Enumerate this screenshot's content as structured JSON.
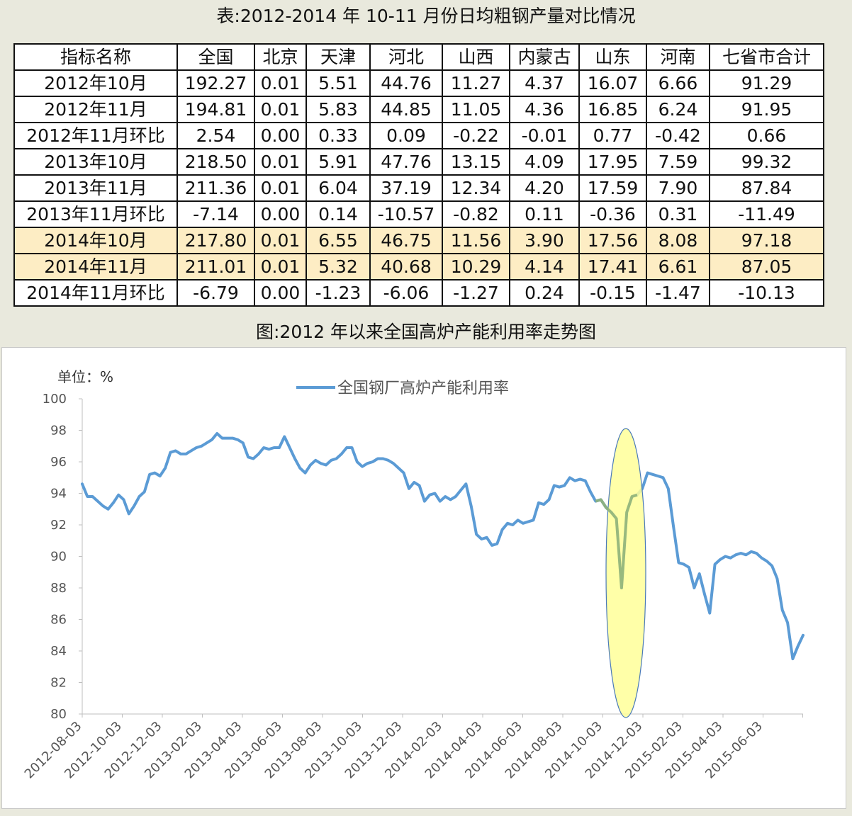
{
  "table_title": "表:2012-2014 年 10-11 月份日均粗钢产量对比情况",
  "chart_title": "图:2012 年以来全国高炉产能利用率走势图",
  "table": {
    "headers": [
      "指标名称",
      "全国",
      "北京",
      "天津",
      "河北",
      "山西",
      "内蒙古",
      "山东",
      "河南",
      "七省市合计"
    ],
    "rows": [
      [
        "2012年10月",
        "192.27",
        "0.01",
        "5.51",
        "44.76",
        "11.27",
        "4.37",
        "16.07",
        "6.66",
        "91.29"
      ],
      [
        "2012年11月",
        "194.81",
        "0.01",
        "5.83",
        "44.85",
        "11.05",
        "4.36",
        "16.85",
        "6.24",
        "91.95"
      ],
      [
        "2012年11月环比",
        "2.54",
        "0.00",
        "0.33",
        "0.09",
        "-0.22",
        "-0.01",
        "0.77",
        "-0.42",
        "0.66"
      ],
      [
        "2013年10月",
        "218.50",
        "0.01",
        "5.91",
        "47.76",
        "13.15",
        "4.09",
        "17.95",
        "7.59",
        "99.32"
      ],
      [
        "2013年11月",
        "211.36",
        "0.01",
        "6.04",
        "37.19",
        "12.34",
        "4.20",
        "17.59",
        "7.90",
        "87.84"
      ],
      [
        "2013年11月环比",
        "-7.14",
        "0.00",
        "0.14",
        "-10.57",
        "-0.82",
        "0.11",
        "-0.36",
        "0.31",
        "-11.49"
      ],
      [
        "2014年10月",
        "217.80",
        "0.01",
        "6.55",
        "46.75",
        "11.56",
        "3.90",
        "17.56",
        "8.08",
        "97.18"
      ],
      [
        "2014年11月",
        "211.01",
        "0.01",
        "5.32",
        "40.68",
        "10.29",
        "4.14",
        "17.41",
        "6.61",
        "87.05"
      ],
      [
        "2014年11月环比",
        "-6.79",
        "0.00",
        "-1.23",
        "-6.06",
        "-1.27",
        "0.24",
        "-0.15",
        "-1.47",
        "-10.13"
      ]
    ],
    "highlight_rows": [
      6,
      7
    ],
    "highlight_color": "#fdedc4"
  },
  "chart_data": {
    "type": "line",
    "unit_label": "单位：%",
    "ylim": [
      80,
      100
    ],
    "yticks": [
      80,
      82,
      84,
      86,
      88,
      90,
      92,
      94,
      96,
      98,
      100
    ],
    "x_tick_labels": [
      "2012-08-03",
      "2012-10-03",
      "2012-12-03",
      "2013-02-03",
      "2013-04-03",
      "2013-06-03",
      "2013-08-03",
      "2013-10-03",
      "2013-12-03",
      "2014-02-03",
      "2014-04-03",
      "2014-06-03",
      "2014-08-03",
      "2014-10-03",
      "2014-12-03",
      "2015-02-03",
      "2015-04-03",
      "2015-06-03"
    ],
    "grid": false,
    "legend": "top",
    "series": [
      {
        "name": "全国钢厂高炉产能利用率",
        "color": "#5b9bd5",
        "values": [
          94.6,
          93.8,
          93.8,
          93.5,
          93.2,
          93.0,
          93.4,
          93.9,
          93.6,
          92.7,
          93.2,
          93.8,
          94.1,
          95.2,
          95.3,
          95.1,
          95.6,
          96.6,
          96.7,
          96.5,
          96.5,
          96.7,
          96.9,
          97.0,
          97.2,
          97.4,
          97.8,
          97.5,
          97.5,
          97.5,
          97.4,
          97.2,
          96.3,
          96.2,
          96.5,
          96.9,
          96.8,
          96.9,
          96.9,
          97.6,
          96.9,
          96.2,
          95.6,
          95.3,
          95.8,
          96.1,
          95.9,
          95.8,
          96.1,
          96.2,
          96.5,
          96.9,
          96.9,
          96.0,
          95.7,
          95.9,
          96.0,
          96.2,
          96.2,
          96.1,
          95.9,
          95.6,
          95.3,
          94.3,
          94.7,
          94.5,
          93.5,
          93.9,
          94.0,
          93.5,
          93.8,
          93.6,
          93.8,
          94.2,
          94.6,
          93.2,
          91.4,
          91.1,
          91.2,
          90.7,
          90.8,
          91.7,
          92.1,
          92.0,
          92.3,
          92.1,
          92.2,
          92.3,
          93.4,
          93.3,
          93.6,
          94.5,
          94.4,
          94.5,
          95.0,
          94.8,
          94.9,
          94.8,
          94.1,
          93.5,
          93.6,
          93.1,
          92.8,
          92.4,
          88.0,
          92.8,
          93.8,
          93.9,
          94.3,
          95.3,
          95.2,
          95.1,
          95.0,
          94.3,
          91.9,
          89.6,
          89.5,
          89.3,
          88.0,
          88.9,
          87.6,
          86.4,
          89.5,
          89.8,
          90.0,
          89.9,
          90.1,
          90.2,
          90.1,
          90.3,
          90.2,
          89.9,
          89.7,
          89.4,
          88.6,
          86.6,
          85.8,
          83.5,
          84.3,
          85.0
        ]
      }
    ],
    "annotation": {
      "type": "ellipse",
      "fill": "#ffff99",
      "stroke": "#4a7ab8",
      "covers_x_range": [
        "2014-10-03",
        "2014-12-03"
      ]
    }
  }
}
